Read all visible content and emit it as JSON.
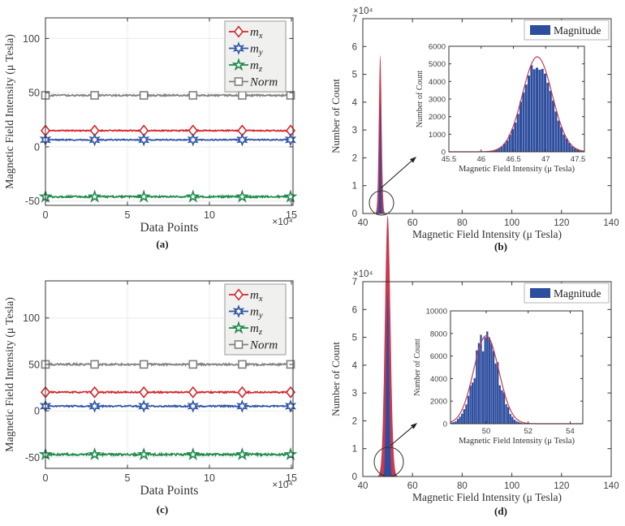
{
  "figure": {
    "background": "#ffffff",
    "description": "Magnetometer measurements figure with four panels"
  },
  "colors": {
    "red": "#d2282e",
    "blue": "#2f55a4",
    "green": "#1f8a4d",
    "gray": "#808080",
    "hist_blue": "#2d4d9e",
    "fit_red": "#c9394f",
    "axis": "#333333",
    "tick_text": "#404040",
    "grid": "#ececec",
    "legend_bg_line": "#f0f0ef",
    "legend_bg_hist": "#ffffff",
    "legend_border": "#9a9a9a"
  },
  "chart_data": [
    {
      "id": "a",
      "caption": "(a)",
      "type": "line",
      "xlabel": "Data Points",
      "ylabel": "Magnetic Field Intensity (μ Tesla)",
      "axis_multiplier": "×10⁴",
      "xlim": [
        0,
        15.1
      ],
      "ylim": [
        -54,
        119
      ],
      "xticks": [
        0,
        5,
        10,
        15
      ],
      "yticks": [
        -50,
        0,
        50,
        100
      ],
      "grid": true,
      "marker_x": [
        0,
        3,
        6,
        9,
        12,
        15
      ],
      "series": [
        {
          "label": "m",
          "sub": "x",
          "color_key": "red",
          "marker": "diamond",
          "value": 15,
          "noise": 0.55
        },
        {
          "label": "m",
          "sub": "y",
          "color_key": "blue",
          "marker": "hexagram",
          "value": 6.5,
          "noise": 0.55
        },
        {
          "label": "m",
          "sub": "z",
          "color_key": "green",
          "marker": "pentagram",
          "value": -46,
          "noise": 0.8
        },
        {
          "label": "Norm",
          "sub": "",
          "color_key": "gray",
          "marker": "square",
          "value": 47.5,
          "noise": 0.7
        }
      ]
    },
    {
      "id": "b",
      "caption": "(b)",
      "type": "hist",
      "xlabel": "Magnetic Field Intensity (μ Tesla)",
      "ylabel": "Number of Count",
      "y_multiplier": "×10⁴",
      "xlim": [
        40,
        140
      ],
      "ylim": [
        0,
        70000
      ],
      "xticks": [
        40,
        60,
        80,
        100,
        120,
        140
      ],
      "yticks": [
        0,
        10000,
        20000,
        30000,
        40000,
        50000,
        60000,
        70000
      ],
      "ytick_labels": [
        "0",
        "1",
        "2",
        "3",
        "4",
        "5",
        "6",
        "7"
      ],
      "legend_label": "Magnitude",
      "peak": {
        "center": 47,
        "sigma": 0.55,
        "amp": 5700
      },
      "inset": {
        "xlabel": "Magnetic Field Intensity (μ Tesla)",
        "ylabel": "Number of Count",
        "xlim": [
          45.5,
          47.6
        ],
        "xticks": [
          45.5,
          46,
          46.5,
          47,
          47.5
        ],
        "xtick_labels": [
          "45.5",
          "46",
          "46.5",
          "47",
          "47.5"
        ],
        "ylim": [
          0,
          6000
        ],
        "yticks": [
          0,
          1000,
          2000,
          3000,
          4000,
          5000,
          6000
        ],
        "hist": {
          "center": 46.87,
          "sigma": 0.23,
          "amp": 5250,
          "bin_width": 0.042,
          "noise": 0.05,
          "dip": 0.07
        },
        "fit": {
          "center": 46.87,
          "sigma": 0.23,
          "amp": 5400
        }
      }
    },
    {
      "id": "c",
      "caption": "(c)",
      "type": "line",
      "xlabel": "Data Points",
      "ylabel": "Magnetic Field Intensity (μ Tesla)",
      "axis_multiplier": "×10⁴",
      "xlim": [
        0,
        15.1
      ],
      "ylim": [
        -62,
        140
      ],
      "xticks": [
        0,
        5,
        10,
        15
      ],
      "yticks": [
        -50,
        0,
        50,
        100
      ],
      "grid": true,
      "marker_x": [
        0,
        3,
        6,
        9,
        12,
        15
      ],
      "series": [
        {
          "label": "m",
          "sub": "x",
          "color_key": "red",
          "marker": "diamond",
          "value": 20,
          "noise": 0.8
        },
        {
          "label": "m",
          "sub": "y",
          "color_key": "blue",
          "marker": "hexagram",
          "value": 5,
          "noise": 0.8
        },
        {
          "label": "m",
          "sub": "z",
          "color_key": "green",
          "marker": "pentagram",
          "value": -47,
          "noise": 1.1
        },
        {
          "label": "Norm",
          "sub": "",
          "color_key": "gray",
          "marker": "square",
          "value": 50,
          "noise": 1.0
        }
      ]
    },
    {
      "id": "d",
      "caption": "(d)",
      "type": "hist",
      "xlabel": "Magnetic Field Intensity (μ Tesla)",
      "ylabel": "Number of Count",
      "y_multiplier": "×10⁴",
      "xlim": [
        40,
        140
      ],
      "ylim": [
        0,
        70000
      ],
      "xticks": [
        40,
        60,
        80,
        100,
        120,
        140
      ],
      "yticks": [
        0,
        10000,
        20000,
        30000,
        40000,
        50000,
        60000,
        70000
      ],
      "ytick_labels": [
        "0",
        "1",
        "2",
        "3",
        "4",
        "5",
        "6",
        "7"
      ],
      "legend_label": "Magnitude",
      "peak": {
        "center": 50,
        "sigma": 1.1,
        "amp": 9400
      },
      "inset": {
        "xlabel": "Magnetic Field Intensity (μ Tesla)",
        "ylabel": "Number of Count",
        "xlim": [
          48.3,
          54.6
        ],
        "xticks": [
          50,
          52,
          54
        ],
        "xtick_labels": [
          "50",
          "52",
          "54"
        ],
        "ylim": [
          0,
          10000
        ],
        "yticks": [
          0,
          2000,
          4000,
          6000,
          8000,
          10000
        ],
        "hist": {
          "center": 50.0,
          "sigma": 0.55,
          "amp": 7900,
          "bin_width": 0.1,
          "noise": 0.16,
          "dip": 0
        },
        "fit": {
          "center": 50.0,
          "sigma": 0.6,
          "amp": 7800
        }
      }
    }
  ]
}
